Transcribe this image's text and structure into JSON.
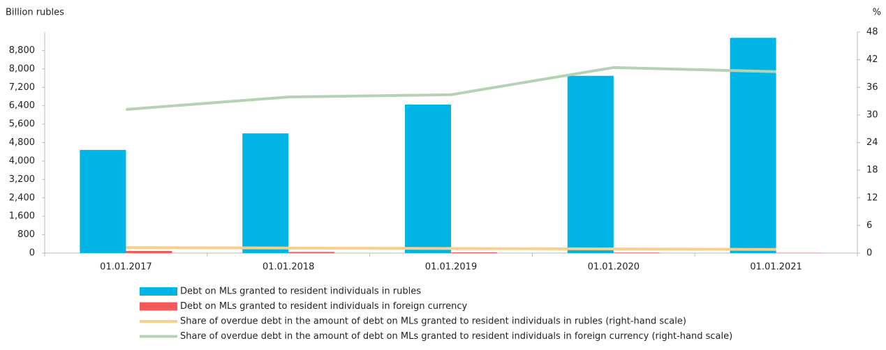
{
  "chart_data": {
    "type": "bar",
    "ylabel": "Billion rubles",
    "y2label": "%",
    "categories": [
      "01.01.2017",
      "01.01.2018",
      "01.01.2019",
      "01.01.2020",
      "01.01.2021"
    ],
    "series": [
      {
        "name": "Debt on MLs granted to resident individuals in rubles",
        "color": "#00b4e6",
        "type": "bar",
        "values": [
          4480,
          5200,
          6450,
          7700,
          9350
        ]
      },
      {
        "name": "Debt on MLs granted to resident individuals in foreign currency",
        "color": "#f45a5a",
        "type": "bar",
        "values": [
          90,
          50,
          30,
          20,
          10
        ]
      },
      {
        "name": "Share of overdue debt in the amount of debt on MLs granted to resident individuals in rubles (right-hand scale)",
        "color": "#f8cf8c",
        "type": "line",
        "axis": "y2",
        "values": [
          1.2,
          1.1,
          1.0,
          0.9,
          0.8
        ]
      },
      {
        "name": "Share of overdue debt in the amount of debt on MLs granted to resident individuals in foreign currency (right-hand scale)",
        "color": "#b5d3b4",
        "type": "line",
        "axis": "y2",
        "values": [
          31.2,
          33.9,
          34.4,
          40.3,
          39.4
        ]
      }
    ],
    "ylim": [
      0,
      9600
    ],
    "yticks": [
      0,
      800,
      {
        "value": 1600,
        "label": "1,600"
      },
      {
        "value": 2400,
        "label": "2,400"
      },
      {
        "value": 3200,
        "label": "3,200"
      },
      {
        "value": 4000,
        "label": "4,000"
      },
      {
        "value": 4800,
        "label": "4,800"
      },
      {
        "value": 5600,
        "label": "5,600"
      },
      {
        "value": 6400,
        "label": "6,400"
      },
      {
        "value": 7200,
        "label": "7,200"
      },
      {
        "value": 8000,
        "label": "8,000"
      },
      {
        "value": 8800,
        "label": "8,800"
      }
    ],
    "y2lim": [
      0,
      48
    ],
    "y2ticks": [
      0,
      6,
      12,
      18,
      24,
      30,
      36,
      42,
      48
    ]
  }
}
